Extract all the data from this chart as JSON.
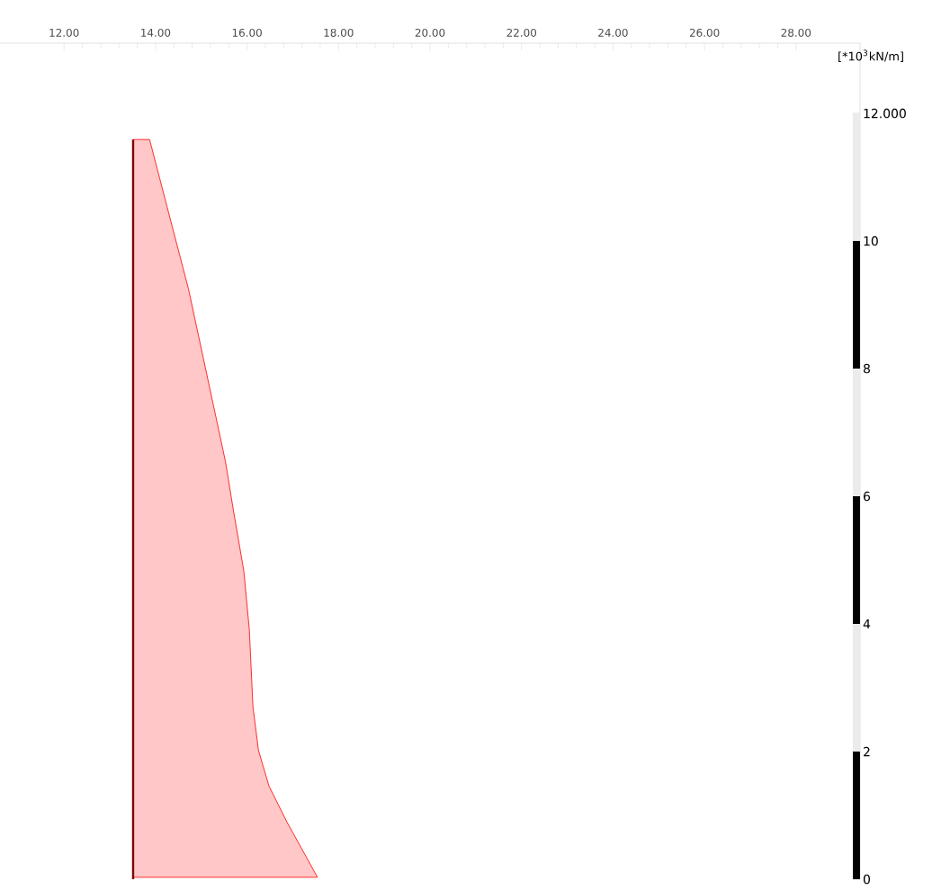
{
  "chart_data": {
    "type": "area",
    "ylabel": "[*10$^{3}$kN/m]",
    "series": [
      {
        "color": "#ff0000",
        "x": [
          13.51,
          13.87,
          14.72,
          15.53,
          15.7,
          15.93,
          16.05,
          16.13,
          16.25,
          16.48,
          16.87,
          17.54,
          13.51
        ],
        "values": [
          11.59,
          11.59,
          9.25,
          6.54,
          5.79,
          4.83,
          3.91,
          2.7,
          2.02,
          1.46,
          0.9,
          0.03,
          0.03
        ]
      }
    ],
    "ref_lines": [
      {
        "axis": "x",
        "value": 13.51,
        "color": "#800000"
      }
    ],
    "xlim": [
      10.6,
      29.4
    ],
    "ylim": [
      0,
      13.1
    ],
    "xticks": [
      {
        "value": 12,
        "label": "12.00"
      },
      {
        "value": 14,
        "label": "14.00"
      },
      {
        "value": 16,
        "label": "16.00"
      },
      {
        "value": 18,
        "label": "18.00"
      },
      {
        "value": 20,
        "label": "20.00"
      },
      {
        "value": 22,
        "label": "22.00"
      },
      {
        "value": 24,
        "label": "24.00"
      },
      {
        "value": 26,
        "label": "26.00"
      },
      {
        "value": 28,
        "label": "28.00"
      }
    ],
    "yticks": [
      0,
      2,
      4,
      6,
      8,
      10,
      {
        "value": 12,
        "label": "12.000"
      }
    ],
    "grid": false,
    "marker": "none",
    "line_style": "solid"
  }
}
